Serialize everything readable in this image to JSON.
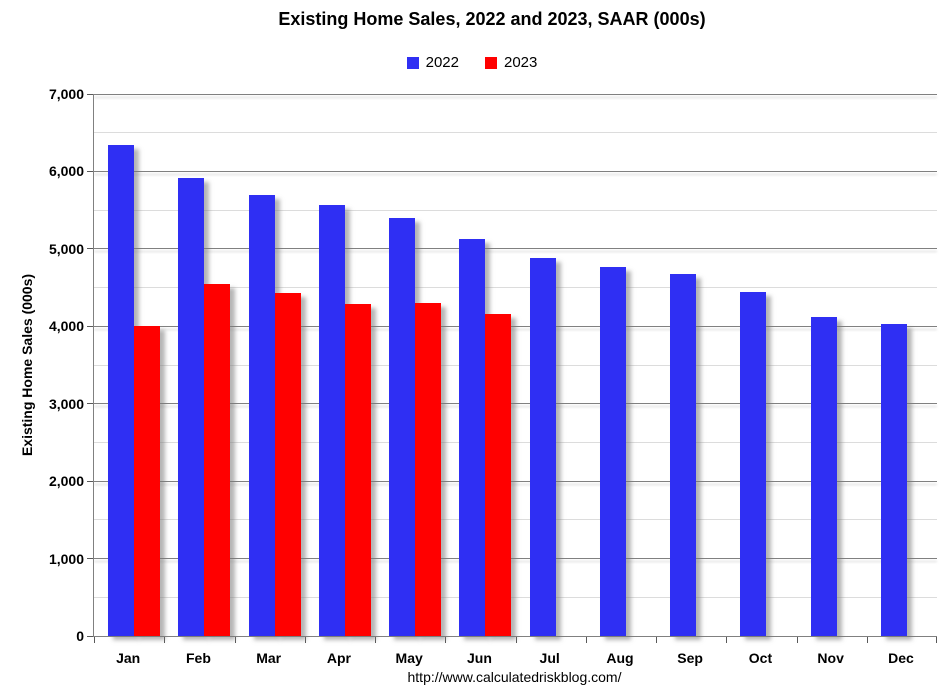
{
  "page": {
    "footer_url": "http://www.calculatedriskblog.com/"
  },
  "chart_data": {
    "type": "bar",
    "title": "Existing Home Sales,  2022 and 2023, SAAR (000s)",
    "ylabel": "Existing Home Sales (000s)",
    "xlabel": "",
    "categories": [
      "Jan",
      "Feb",
      "Mar",
      "Apr",
      "May",
      "Jun",
      "Jul",
      "Aug",
      "Sep",
      "Oct",
      "Nov",
      "Dec"
    ],
    "series": [
      {
        "name": "2022",
        "color": "#2F2FF3",
        "values": [
          6340,
          5910,
          5700,
          5570,
          5400,
          5130,
          4880,
          4760,
          4670,
          4440,
          4120,
          4030
        ]
      },
      {
        "name": "2023",
        "color": "#FF0000",
        "values": [
          4000,
          4550,
          4430,
          4290,
          4300,
          4160,
          null,
          null,
          null,
          null,
          null,
          null
        ]
      }
    ],
    "ylim": [
      0,
      7000
    ],
    "ytick_major": 1000,
    "ytick_minor": 500,
    "ytick_labels": [
      "0",
      "1,000",
      "2,000",
      "3,000",
      "4,000",
      "5,000",
      "6,000",
      "7,000"
    ],
    "grid": "horizontal major+minor",
    "legend_position": "top-center"
  }
}
